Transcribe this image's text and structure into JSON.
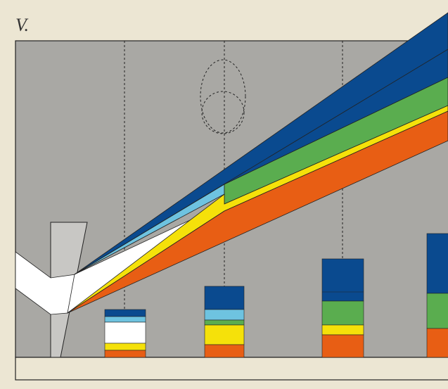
{
  "label": "V."
}
